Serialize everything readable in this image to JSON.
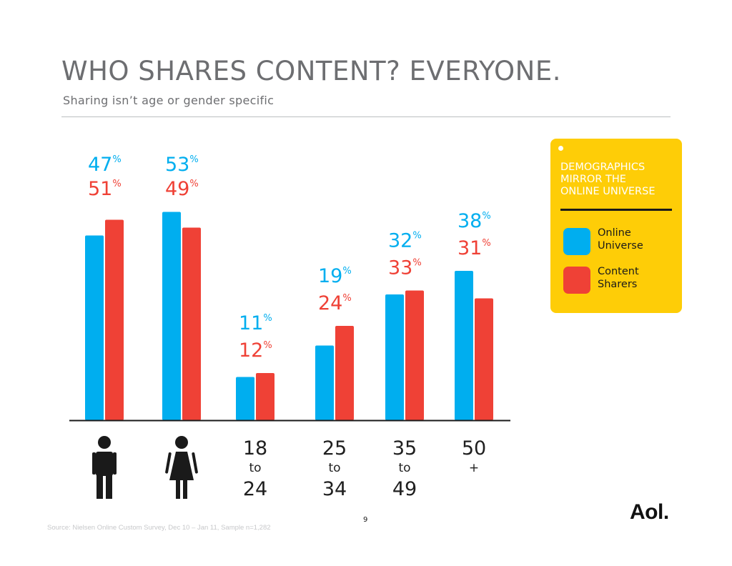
{
  "header": {
    "title": "WHO SHARES CONTENT? EVERYONE.",
    "subtitle": "Sharing isn’t age or gender specific"
  },
  "panel": {
    "heading_lines": [
      "DEMOGRAPHICS",
      "MIRROR THE",
      "ONLINE UNIVERSE"
    ],
    "legend": [
      {
        "lines": [
          "Online",
          "Universe"
        ],
        "color": "#00aeef"
      },
      {
        "lines": [
          "Content",
          "Sharers"
        ],
        "color": "#ef4136"
      }
    ]
  },
  "chart_data": {
    "type": "bar",
    "categories": [
      "Male",
      "Female",
      "18 to 24",
      "25 to 34",
      "35 to 49",
      "50 +"
    ],
    "category_display": [
      {
        "icon": "male-icon"
      },
      {
        "icon": "female-icon"
      },
      {
        "top": "18",
        "mid": "to",
        "bottom": "24"
      },
      {
        "top": "25",
        "mid": "to",
        "bottom": "34"
      },
      {
        "top": "35",
        "mid": "to",
        "bottom": "49"
      },
      {
        "top": "50",
        "mid": "+",
        "bottom": ""
      }
    ],
    "series": [
      {
        "name": "Online Universe",
        "color": "#00aeef",
        "values": [
          47,
          53,
          11,
          19,
          32,
          38
        ]
      },
      {
        "name": "Content Sharers",
        "color": "#ef4136",
        "values": [
          51,
          49,
          12,
          24,
          33,
          31
        ]
      }
    ],
    "value_suffix": "%",
    "ylim": [
      0,
      60
    ],
    "grid": false,
    "legend_position": "right"
  },
  "footer": {
    "source": "Source: Nielsen Online Custom Survey, Dec 10 – Jan 11, Sample n=1,282",
    "page_number": "9",
    "logo": "Aol."
  }
}
